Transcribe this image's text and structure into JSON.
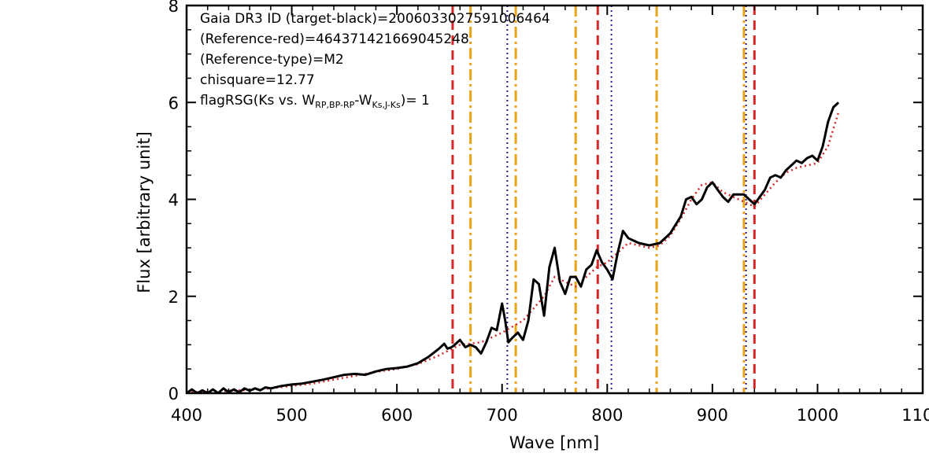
{
  "chart_data": {
    "type": "line",
    "title": "",
    "xlabel": "Wave [nm]",
    "ylabel": "Flux [arbitrary unit]",
    "xlim": [
      400,
      1100
    ],
    "ylim": [
      0,
      8
    ],
    "x_ticks": [
      "400",
      "500",
      "600",
      "700",
      "800",
      "900",
      "1000",
      "1100"
    ],
    "y_ticks": [
      "0",
      "2",
      "4",
      "6",
      "8"
    ],
    "annotations": {
      "line1": "Gaia DR3 ID (target-black)=2006033027591006464",
      "line2": "(Reference-red)=4643714216690452​48",
      "line3": "(Reference-type)=M2",
      "line4": "chisquare=12.77",
      "line5_prefix": "flagRSG(Ks vs. W",
      "line5_sub1": "RP,BP-RP",
      "line5_mid": "-W",
      "line5_sub2": "Ks,J-Ks",
      "line5_suffix": ")= 1"
    },
    "colors": {
      "target": "#000000",
      "reference": "#d62728",
      "red_dashed": "#d62728",
      "orange_dashdot": "#e8a317",
      "blue_dotted": "#1f1f8f"
    },
    "vlines": {
      "red_dashed": [
        653,
        791,
        940
      ],
      "orange_dashdot": [
        670,
        713,
        770,
        847,
        930
      ],
      "blue_dotted": [
        705,
        804,
        932
      ]
    },
    "series": [
      {
        "style": "target",
        "x": [
          400,
          405,
          410,
          415,
          420,
          425,
          430,
          435,
          440,
          445,
          450,
          455,
          460,
          465,
          470,
          475,
          480,
          490,
          500,
          510,
          520,
          530,
          540,
          550,
          560,
          570,
          580,
          590,
          600,
          610,
          620,
          630,
          640,
          645,
          648,
          652,
          655,
          660,
          665,
          670,
          675,
          680,
          685,
          690,
          695,
          700,
          703,
          706,
          710,
          715,
          720,
          725,
          730,
          735,
          740,
          745,
          750,
          755,
          760,
          765,
          770,
          775,
          780,
          785,
          790,
          795,
          800,
          805,
          810,
          815,
          820,
          830,
          840,
          850,
          860,
          870,
          875,
          880,
          885,
          890,
          895,
          900,
          905,
          910,
          915,
          920,
          925,
          930,
          935,
          940,
          945,
          950,
          955,
          960,
          965,
          970,
          975,
          980,
          985,
          990,
          995,
          1000,
          1005,
          1010,
          1015,
          1020
        ],
        "y": [
          0.0,
          0.08,
          0.0,
          0.06,
          0.0,
          0.08,
          0.0,
          0.1,
          0.02,
          0.08,
          0.02,
          0.1,
          0.05,
          0.1,
          0.06,
          0.12,
          0.1,
          0.15,
          0.18,
          0.2,
          0.24,
          0.28,
          0.33,
          0.38,
          0.4,
          0.38,
          0.45,
          0.5,
          0.52,
          0.55,
          0.62,
          0.75,
          0.92,
          1.02,
          0.92,
          0.95,
          1.0,
          1.1,
          0.95,
          1.0,
          0.95,
          0.82,
          1.05,
          1.35,
          1.3,
          1.85,
          1.5,
          1.05,
          1.15,
          1.25,
          1.1,
          1.5,
          2.35,
          2.25,
          1.6,
          2.6,
          3.0,
          2.3,
          2.05,
          2.4,
          2.4,
          2.2,
          2.55,
          2.65,
          2.95,
          2.7,
          2.55,
          2.35,
          2.9,
          3.35,
          3.2,
          3.1,
          3.05,
          3.1,
          3.3,
          3.65,
          4.0,
          4.05,
          3.9,
          4.0,
          4.25,
          4.35,
          4.2,
          4.05,
          3.95,
          4.1,
          4.1,
          4.1,
          4.0,
          3.9,
          4.05,
          4.2,
          4.45,
          4.5,
          4.45,
          4.6,
          4.7,
          4.8,
          4.75,
          4.85,
          4.9,
          4.8,
          5.1,
          5.6,
          5.9,
          6.0
        ]
      },
      {
        "style": "reference",
        "x": [
          400,
          420,
          440,
          460,
          480,
          500,
          520,
          540,
          560,
          580,
          600,
          620,
          640,
          660,
          680,
          700,
          720,
          740,
          750,
          760,
          770,
          780,
          790,
          800,
          810,
          820,
          830,
          840,
          850,
          860,
          870,
          880,
          890,
          900,
          910,
          920,
          930,
          940,
          950,
          960,
          970,
          980,
          990,
          1000,
          1010,
          1020
        ],
        "y": [
          0.02,
          0.03,
          0.05,
          0.07,
          0.1,
          0.15,
          0.2,
          0.28,
          0.36,
          0.44,
          0.5,
          0.6,
          0.78,
          1.0,
          1.05,
          1.25,
          1.5,
          2.0,
          2.4,
          2.3,
          2.2,
          2.4,
          2.6,
          2.7,
          2.9,
          3.1,
          3.05,
          3.0,
          3.05,
          3.25,
          3.6,
          4.0,
          4.3,
          4.35,
          4.15,
          4.05,
          3.95,
          3.85,
          4.1,
          4.35,
          4.55,
          4.65,
          4.7,
          4.75,
          5.1,
          5.8
        ]
      }
    ]
  }
}
